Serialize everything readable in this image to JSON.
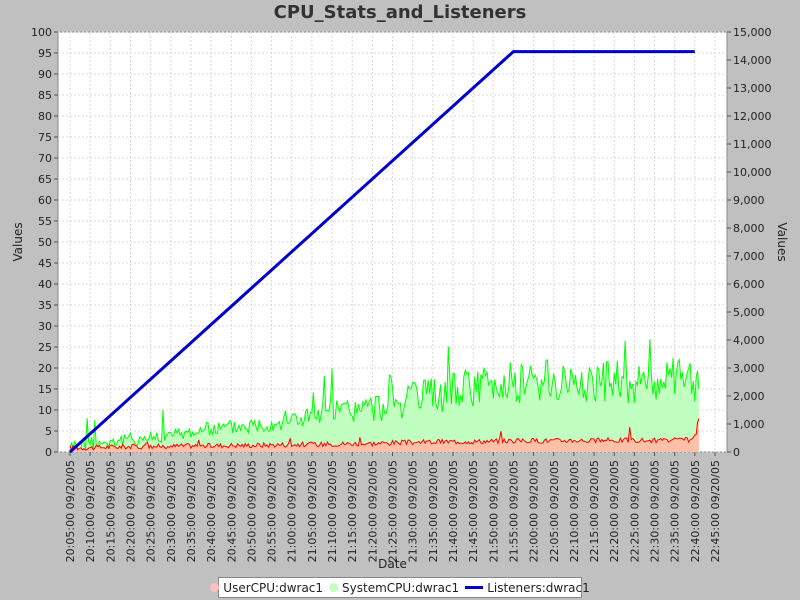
{
  "chart_data": {
    "type": "area",
    "title": "CPU_Stats_and_Listeners",
    "xlabel": "Date",
    "ylabel": "Values",
    "y2label": "Values",
    "ylim": [
      0,
      100
    ],
    "y2lim": [
      0,
      15000
    ],
    "y_ticks": [
      "0",
      "5",
      "10",
      "15",
      "20",
      "25",
      "30",
      "35",
      "40",
      "45",
      "50",
      "55",
      "60",
      "65",
      "70",
      "75",
      "80",
      "85",
      "90",
      "95",
      "100"
    ],
    "y2_ticks": [
      "0",
      "1,000",
      "2,000",
      "3,000",
      "4,000",
      "5,000",
      "6,000",
      "7,000",
      "8,000",
      "9,000",
      "10,000",
      "11,000",
      "12,000",
      "13,000",
      "14,000",
      "15,000"
    ],
    "x_ticks": [
      "20:05:00 09/20/05",
      "20:10:00 09/20/05",
      "20:15:00 09/20/05",
      "20:20:00 09/20/05",
      "20:25:00 09/20/05",
      "20:30:00 09/20/05",
      "20:35:00 09/20/05",
      "20:40:00 09/20/05",
      "20:45:00 09/20/05",
      "20:50:00 09/20/05",
      "20:55:00 09/20/05",
      "21:00:00 09/20/05",
      "21:05:00 09/20/05",
      "21:10:00 09/20/05",
      "21:15:00 09/20/05",
      "21:20:00 09/20/05",
      "21:25:00 09/20/05",
      "21:30:00 09/20/05",
      "21:35:00 09/20/05",
      "21:40:00 09/20/05",
      "21:45:00 09/20/05",
      "21:50:00 09/20/05",
      "21:55:00 09/20/05",
      "22:00:00 09/20/05",
      "22:05:00 09/20/05",
      "22:10:00 09/20/05",
      "22:15:00 09/20/05",
      "22:20:00 09/20/05",
      "22:25:00 09/20/05",
      "22:30:00 09/20/05",
      "22:35:00 09/20/05",
      "22:40:00 09/20/05",
      "22:45:00 09/20/05"
    ],
    "grid": true,
    "legend_position": "bottom",
    "series": [
      {
        "name": "UserCPU:dwrac1",
        "axis": "left",
        "style": "area",
        "color": "#ff0000",
        "fill": "#ffc0a8",
        "x": [
          "20:05",
          "20:10",
          "20:15",
          "20:20",
          "20:25",
          "20:30",
          "20:35",
          "20:40",
          "20:45",
          "20:50",
          "20:55",
          "21:00",
          "21:05",
          "21:10",
          "21:15",
          "21:20",
          "21:25",
          "21:30",
          "21:35",
          "21:40",
          "21:45",
          "21:50",
          "21:55",
          "22:00",
          "22:05",
          "22:10",
          "22:15",
          "22:20",
          "22:25",
          "22:30",
          "22:35",
          "22:40",
          "22:41"
        ],
        "values": [
          1.0,
          1.0,
          1.2,
          1.3,
          1.3,
          1.4,
          1.5,
          1.5,
          1.6,
          1.6,
          1.7,
          1.8,
          1.8,
          1.9,
          2.0,
          2.0,
          2.2,
          2.3,
          2.4,
          2.5,
          2.5,
          2.6,
          2.7,
          2.7,
          2.7,
          2.8,
          2.7,
          2.8,
          2.8,
          2.7,
          2.8,
          3.0,
          8.0
        ]
      },
      {
        "name": "SystemCPU:dwrac1",
        "axis": "left",
        "style": "area",
        "color": "#00ff00",
        "fill": "#c0ffc0",
        "x": [
          "20:05",
          "20:10",
          "20:15",
          "20:20",
          "20:25",
          "20:30",
          "20:35",
          "20:40",
          "20:45",
          "20:50",
          "20:55",
          "21:00",
          "21:05",
          "21:10",
          "21:15",
          "21:20",
          "21:25",
          "21:30",
          "21:35",
          "21:40",
          "21:45",
          "21:50",
          "21:55",
          "22:00",
          "22:05",
          "22:10",
          "22:15",
          "22:20",
          "22:25",
          "22:30",
          "22:35",
          "22:40",
          "22:41"
        ],
        "values": [
          1.5,
          2.0,
          2.5,
          3.0,
          3.5,
          4.0,
          4.8,
          5.5,
          6.0,
          6.5,
          7.0,
          8.0,
          8.5,
          9.5,
          10.0,
          10.5,
          11.0,
          12.5,
          13.5,
          14.5,
          15.5,
          16.0,
          16.5,
          17.0,
          16.5,
          17.0,
          16.5,
          17.0,
          16.5,
          16.5,
          17.0,
          17.0,
          15.0
        ]
      },
      {
        "name": "Listeners:dwrac1",
        "axis": "right",
        "style": "line",
        "color": "#0000cc",
        "x": [
          "20:05",
          "21:55",
          "22:40"
        ],
        "values": [
          0,
          14300,
          14300
        ]
      }
    ]
  },
  "legend": {
    "items": [
      {
        "label": "UserCPU:dwrac1",
        "color": "#ffc0c0",
        "marker": "dot"
      },
      {
        "label": "SystemCPU:dwrac1",
        "color": "#c0ffc0",
        "marker": "dot"
      },
      {
        "label": "Listeners:dwrac1",
        "color": "#0000cc",
        "marker": "line"
      }
    ]
  }
}
